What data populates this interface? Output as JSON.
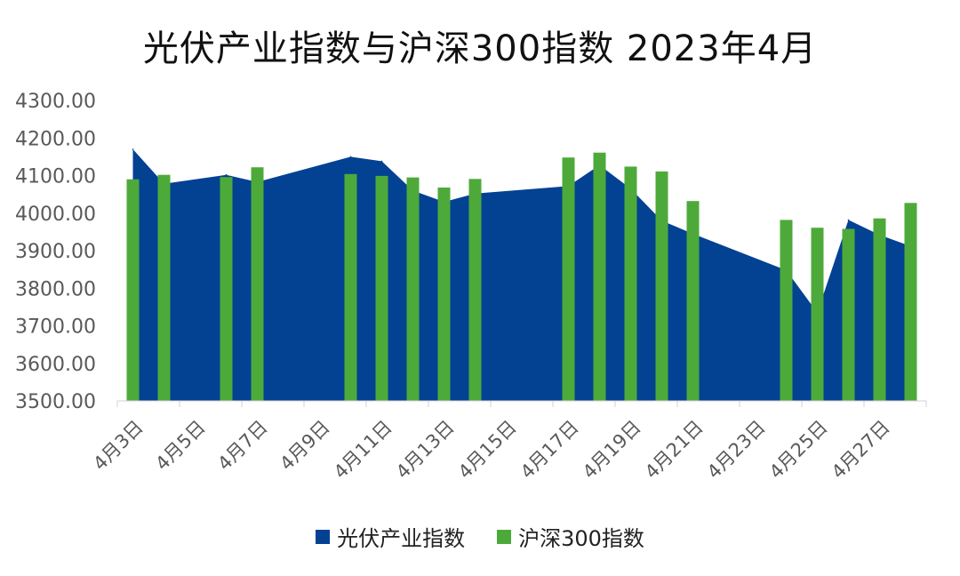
{
  "chart_data": {
    "type": "bar",
    "title": "光伏产业指数与沪深300指数 2023年4月",
    "x_tick_labels": [
      "4月3日",
      "4月5日",
      "4月7日",
      "4月9日",
      "4月11日",
      "4月13日",
      "4月15日",
      "4月17日",
      "4月19日",
      "4月21日",
      "4月23日",
      "4月25日",
      "4月27日"
    ],
    "y_ticks": [
      "3500.00",
      "3600.00",
      "3700.00",
      "3800.00",
      "3900.00",
      "4000.00",
      "4100.00",
      "4200.00",
      "4300.00"
    ],
    "ylim": [
      3500,
      4300
    ],
    "grid": false,
    "legend_position": "bottom",
    "series": [
      {
        "name": "光伏产业指数",
        "kind": "area",
        "color": "#034193",
        "points": [
          {
            "x": "2023-04-03",
            "y": 4170
          },
          {
            "x": "2023-04-04",
            "y": 4078
          },
          {
            "x": "2023-04-06",
            "y": 4102
          },
          {
            "x": "2023-04-07",
            "y": 4083
          },
          {
            "x": "2023-04-10",
            "y": 4150
          },
          {
            "x": "2023-04-11",
            "y": 4138
          },
          {
            "x": "2023-04-12",
            "y": 4060
          },
          {
            "x": "2023-04-13",
            "y": 4030
          },
          {
            "x": "2023-04-14",
            "y": 4052
          },
          {
            "x": "2023-04-17",
            "y": 4072
          },
          {
            "x": "2023-04-18",
            "y": 4128
          },
          {
            "x": "2023-04-19",
            "y": 4065
          },
          {
            "x": "2023-04-20",
            "y": 3980
          },
          {
            "x": "2023-04-21",
            "y": 3945
          },
          {
            "x": "2023-04-24",
            "y": 3848
          },
          {
            "x": "2023-04-25",
            "y": 3735
          },
          {
            "x": "2023-04-26",
            "y": 3982
          },
          {
            "x": "2023-04-27",
            "y": 3942
          },
          {
            "x": "2023-04-28",
            "y": 3912
          }
        ]
      },
      {
        "name": "沪深300指数",
        "kind": "bar",
        "color": "#4DAA3A",
        "points": [
          {
            "x": "2023-04-03",
            "y": 4090
          },
          {
            "x": "2023-04-04",
            "y": 4102
          },
          {
            "x": "2023-04-06",
            "y": 4096
          },
          {
            "x": "2023-04-07",
            "y": 4122
          },
          {
            "x": "2023-04-10",
            "y": 4104
          },
          {
            "x": "2023-04-11",
            "y": 4099
          },
          {
            "x": "2023-04-12",
            "y": 4095
          },
          {
            "x": "2023-04-13",
            "y": 4068
          },
          {
            "x": "2023-04-14",
            "y": 4091
          },
          {
            "x": "2023-04-17",
            "y": 4148
          },
          {
            "x": "2023-04-18",
            "y": 4161
          },
          {
            "x": "2023-04-19",
            "y": 4124
          },
          {
            "x": "2023-04-20",
            "y": 4111
          },
          {
            "x": "2023-04-21",
            "y": 4032
          },
          {
            "x": "2023-04-24",
            "y": 3982
          },
          {
            "x": "2023-04-25",
            "y": 3961
          },
          {
            "x": "2023-04-26",
            "y": 3958
          },
          {
            "x": "2023-04-27",
            "y": 3986
          },
          {
            "x": "2023-04-28",
            "y": 4027
          }
        ]
      }
    ]
  }
}
